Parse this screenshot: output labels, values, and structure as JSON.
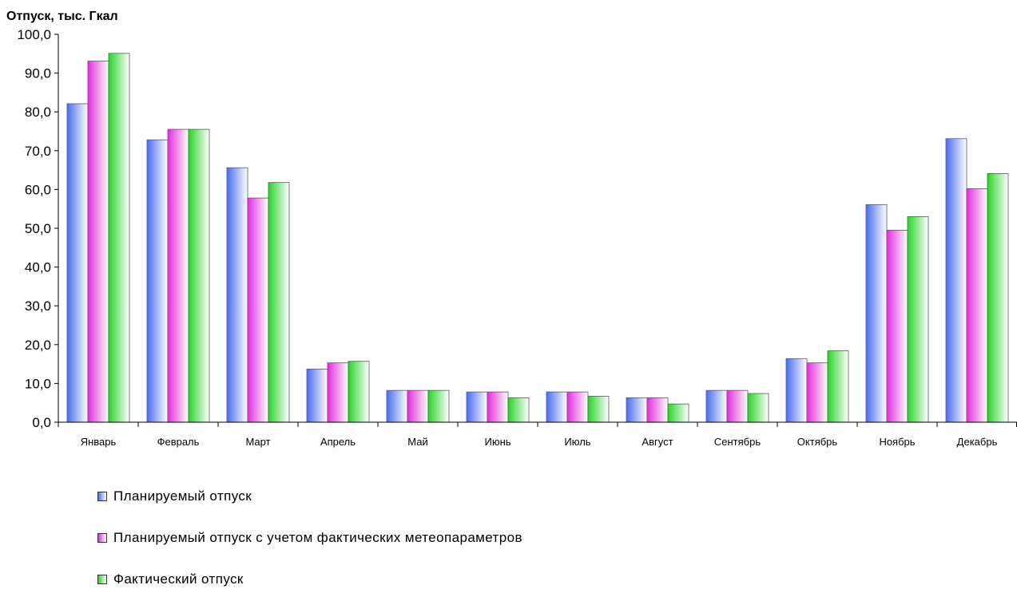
{
  "chart_data": {
    "type": "bar",
    "ylabel": "Отпуск, тыс. Гкал",
    "ylim": [
      0,
      100
    ],
    "yticks": [
      "0,0",
      "10,0",
      "20,0",
      "30,0",
      "40,0",
      "50,0",
      "60,0",
      "70,0",
      "80,0",
      "90,0",
      "100,0"
    ],
    "categories": [
      "Январь",
      "Февраль",
      "Март",
      "Апрель",
      "Май",
      "Июнь",
      "Июль",
      "Август",
      "Сентябрь",
      "Октябрь",
      "Ноябрь",
      "Декабрь"
    ],
    "grid": false,
    "legend_position": "bottom-left",
    "series": [
      {
        "name": "Планируемый отпуск",
        "color": "#4a6cf0",
        "values": [
          82.1,
          72.8,
          65.6,
          13.7,
          8.2,
          7.8,
          7.8,
          6.3,
          8.2,
          16.4,
          56.1,
          73.1
        ]
      },
      {
        "name": "Планируемый отпуск с учетом фактических метеопараметров",
        "color": "#e62ae0",
        "values": [
          93.1,
          75.5,
          57.8,
          15.3,
          8.2,
          7.8,
          7.8,
          6.3,
          8.2,
          15.3,
          49.5,
          60.2
        ]
      },
      {
        "name": "Фактический отпуск",
        "color": "#27d427",
        "values": [
          95.1,
          75.5,
          61.8,
          15.7,
          8.2,
          6.3,
          6.7,
          4.7,
          7.4,
          18.4,
          53.0,
          64.1
        ]
      }
    ]
  }
}
